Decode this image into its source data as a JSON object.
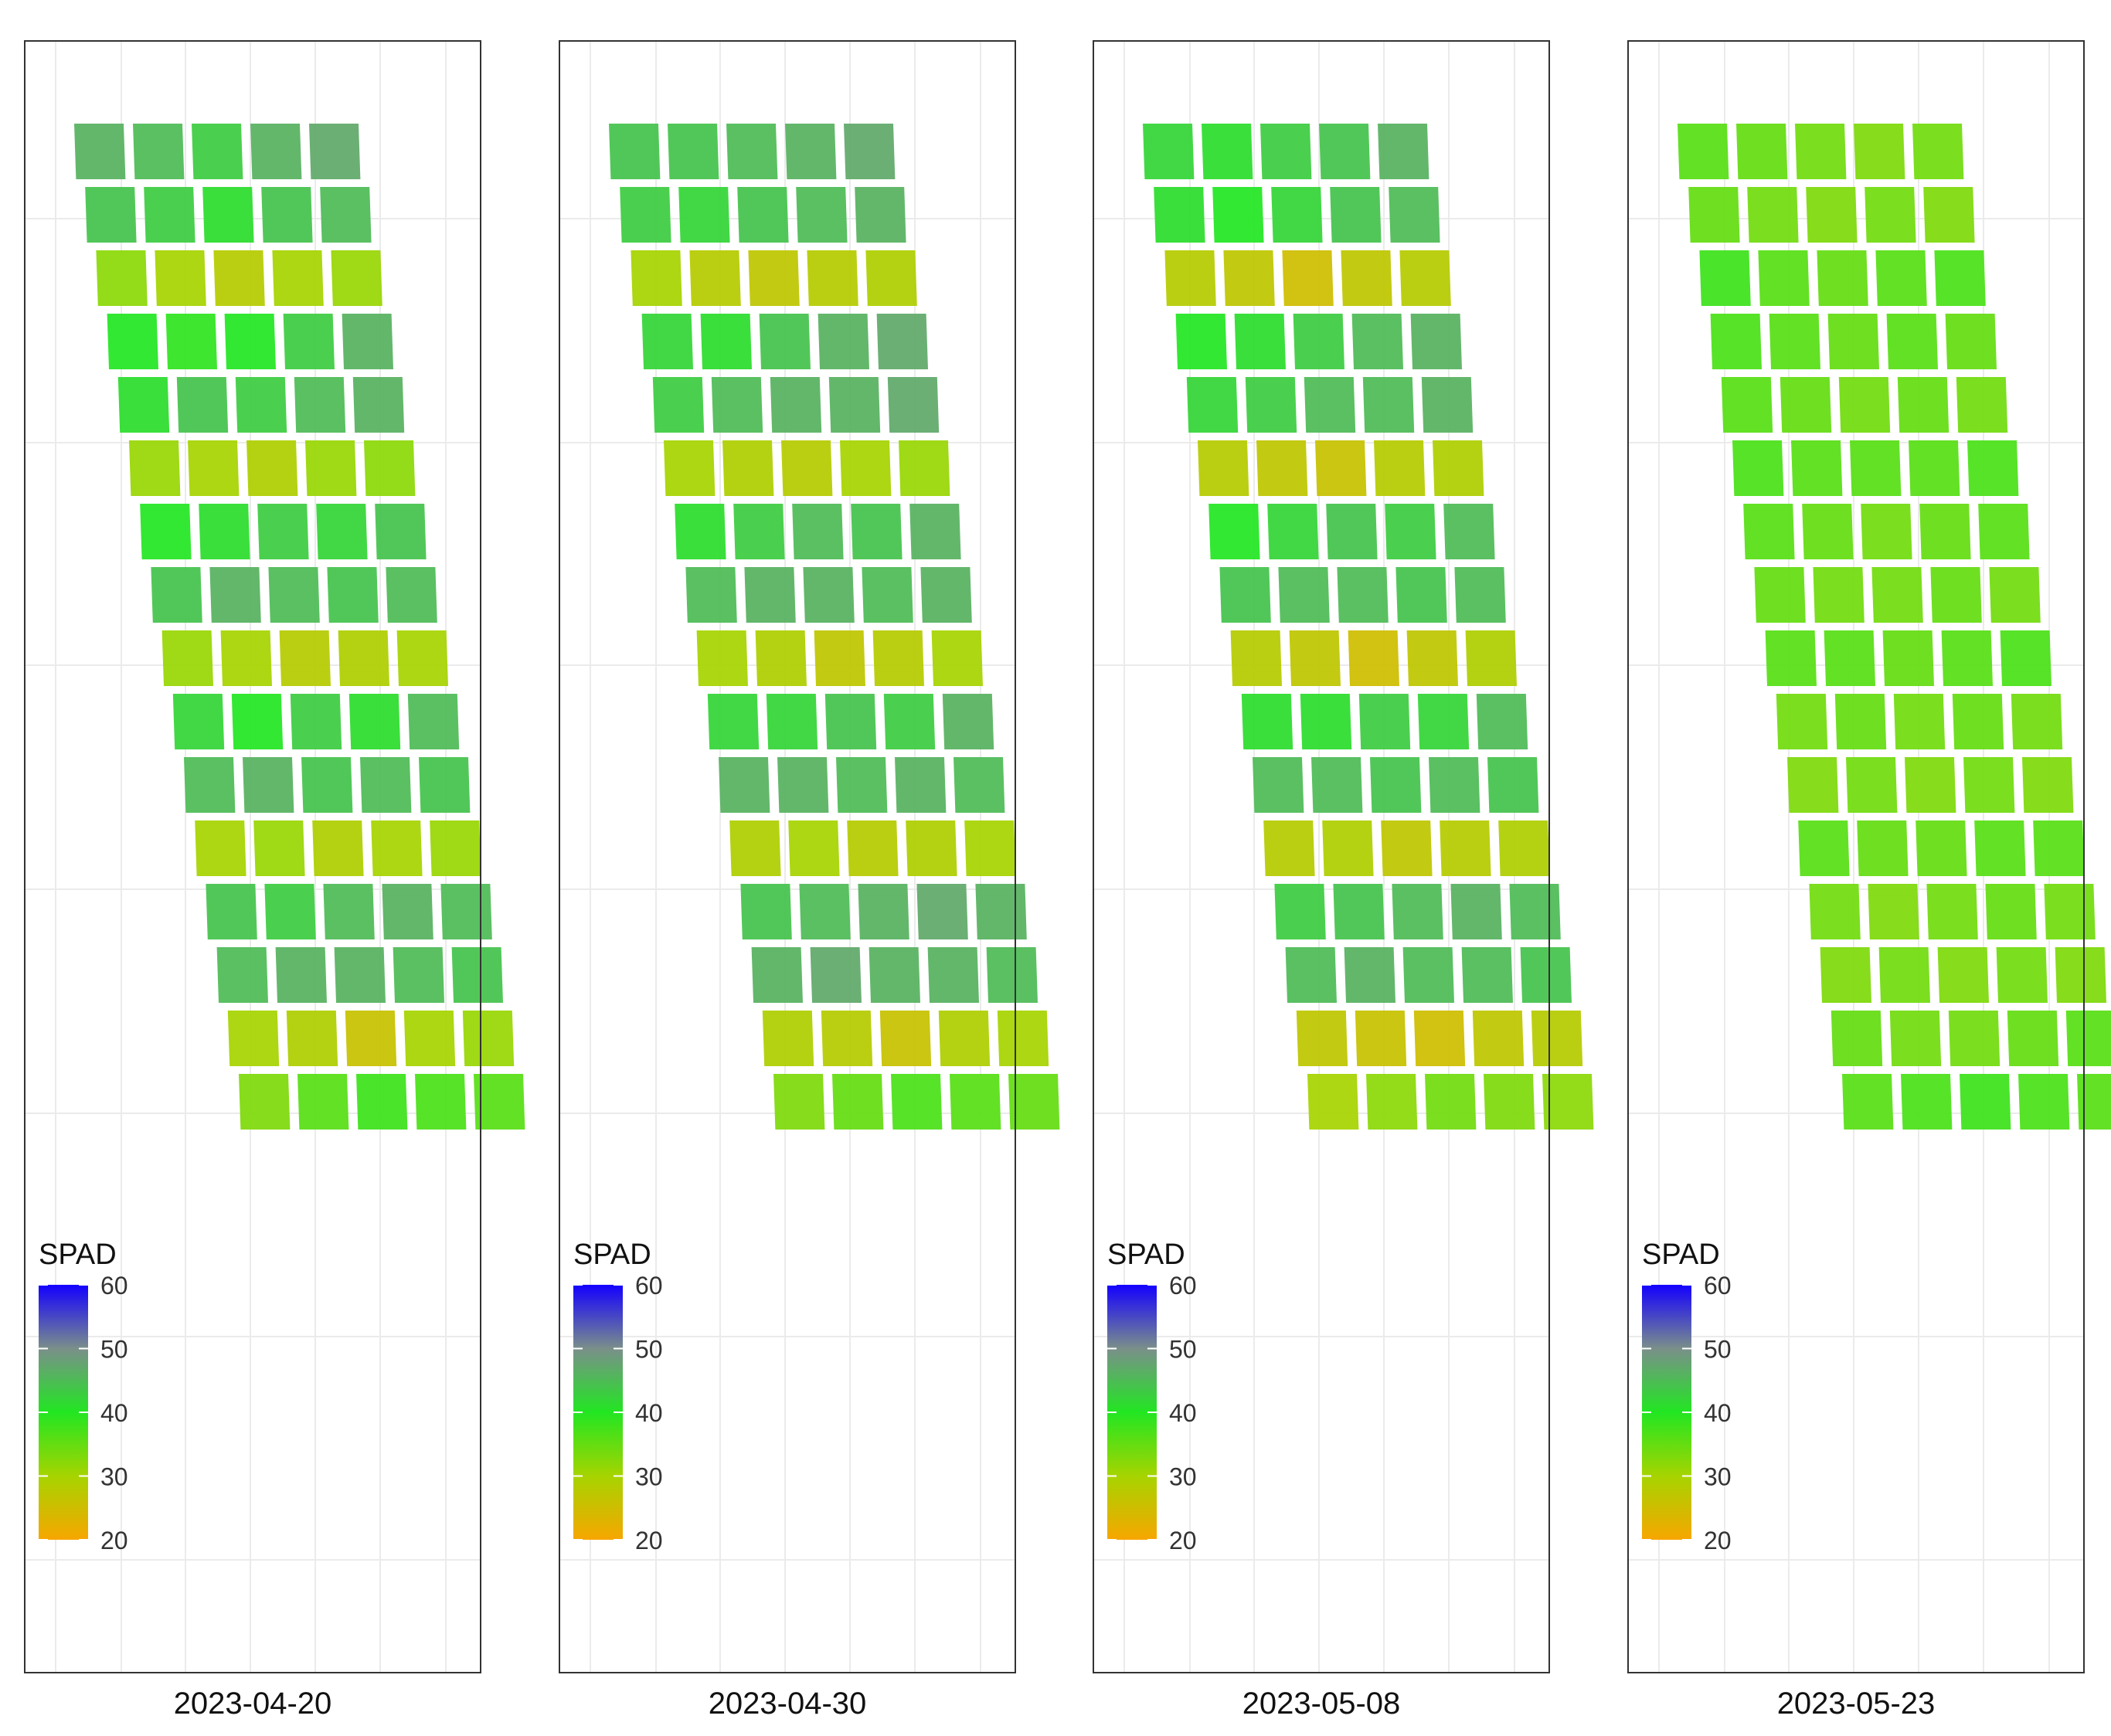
{
  "chart_data": {
    "type": "heatmap",
    "subtype": "field-plot raster map, small multiples",
    "legend": {
      "title": "SPAD",
      "placement": "bottom-left inside each panel",
      "range": [
        20,
        60
      ],
      "ticks": [
        60,
        50,
        40,
        30,
        20
      ],
      "stops": [
        {
          "value": 20,
          "color": "#f7a600"
        },
        {
          "value": 30,
          "color": "#a6d400"
        },
        {
          "value": 40,
          "color": "#22e622"
        },
        {
          "value": 50,
          "color": "#7a8f8a"
        },
        {
          "value": 60,
          "color": "#1400ff"
        }
      ]
    },
    "grid": true,
    "panels": [
      {
        "label": "2023-04-20",
        "blocks": [
          [
            46,
            45,
            43,
            46,
            47
          ],
          [
            44,
            43,
            41,
            44,
            45
          ],
          [
            32,
            30,
            28,
            30,
            31
          ],
          [
            40,
            39,
            40,
            43,
            46
          ],
          [
            41,
            44,
            43,
            45,
            46
          ],
          [
            31,
            30,
            29,
            31,
            32
          ],
          [
            40,
            41,
            43,
            42,
            44
          ],
          [
            44,
            46,
            45,
            44,
            45
          ],
          [
            31,
            30,
            28,
            29,
            30
          ],
          [
            42,
            40,
            43,
            41,
            45
          ],
          [
            45,
            46,
            44,
            45,
            44
          ],
          [
            30,
            31,
            29,
            30,
            31
          ],
          [
            44,
            43,
            45,
            46,
            45
          ],
          [
            45,
            46,
            46,
            45,
            44
          ],
          [
            30,
            29,
            26,
            30,
            31
          ],
          [
            33,
            36,
            38,
            37,
            36
          ]
        ]
      },
      {
        "label": "2023-04-30",
        "blocks": [
          [
            44,
            44,
            45,
            46,
            47
          ],
          [
            43,
            42,
            44,
            45,
            46
          ],
          [
            30,
            28,
            27,
            28,
            29
          ],
          [
            42,
            41,
            44,
            46,
            47
          ],
          [
            43,
            45,
            46,
            46,
            47
          ],
          [
            30,
            29,
            28,
            30,
            31
          ],
          [
            41,
            43,
            45,
            44,
            46
          ],
          [
            45,
            46,
            46,
            45,
            46
          ],
          [
            30,
            29,
            27,
            28,
            30
          ],
          [
            42,
            42,
            44,
            43,
            46
          ],
          [
            46,
            46,
            45,
            46,
            45
          ],
          [
            29,
            30,
            28,
            29,
            30
          ],
          [
            44,
            45,
            46,
            47,
            46
          ],
          [
            46,
            47,
            46,
            46,
            45
          ],
          [
            29,
            28,
            26,
            29,
            30
          ],
          [
            33,
            35,
            37,
            36,
            35
          ]
        ]
      },
      {
        "label": "2023-05-08",
        "blocks": [
          [
            42,
            41,
            43,
            44,
            46
          ],
          [
            41,
            40,
            42,
            44,
            45
          ],
          [
            28,
            27,
            25,
            27,
            28
          ],
          [
            40,
            41,
            43,
            45,
            46
          ],
          [
            42,
            43,
            45,
            45,
            46
          ],
          [
            28,
            27,
            26,
            28,
            29
          ],
          [
            40,
            42,
            44,
            43,
            45
          ],
          [
            44,
            45,
            45,
            44,
            45
          ],
          [
            28,
            27,
            25,
            27,
            29
          ],
          [
            41,
            41,
            43,
            42,
            45
          ],
          [
            45,
            45,
            44,
            45,
            44
          ],
          [
            28,
            29,
            27,
            28,
            29
          ],
          [
            43,
            44,
            45,
            46,
            45
          ],
          [
            45,
            46,
            45,
            45,
            44
          ],
          [
            27,
            26,
            25,
            27,
            28
          ],
          [
            30,
            32,
            34,
            33,
            32
          ]
        ]
      },
      {
        "label": "2023-05-23",
        "blocks": [
          [
            36,
            35,
            34,
            33,
            34
          ],
          [
            35,
            34,
            33,
            34,
            33
          ],
          [
            38,
            36,
            35,
            36,
            37
          ],
          [
            37,
            36,
            35,
            36,
            35
          ],
          [
            36,
            35,
            34,
            35,
            34
          ],
          [
            37,
            36,
            36,
            36,
            37
          ],
          [
            36,
            35,
            34,
            35,
            36
          ],
          [
            35,
            34,
            34,
            35,
            34
          ],
          [
            36,
            36,
            35,
            36,
            37
          ],
          [
            34,
            35,
            34,
            35,
            34
          ],
          [
            33,
            34,
            33,
            34,
            33
          ],
          [
            36,
            35,
            35,
            36,
            36
          ],
          [
            34,
            33,
            34,
            35,
            34
          ],
          [
            33,
            34,
            33,
            34,
            33
          ],
          [
            35,
            34,
            34,
            35,
            36
          ],
          [
            36,
            37,
            38,
            37,
            36
          ]
        ]
      }
    ]
  }
}
